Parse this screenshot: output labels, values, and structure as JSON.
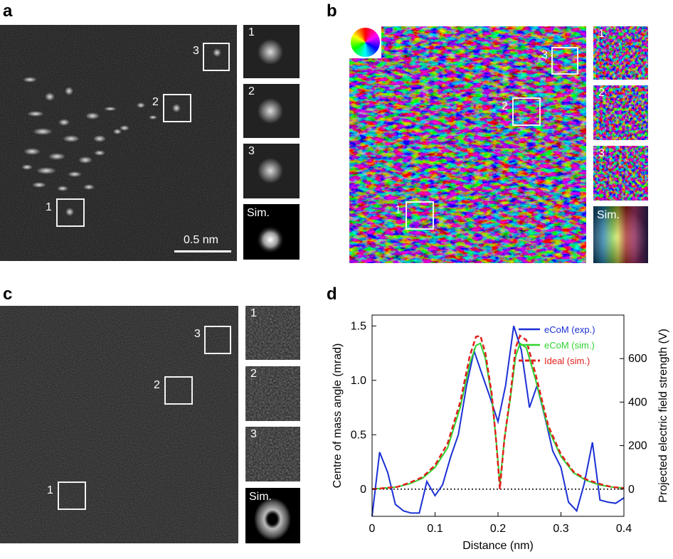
{
  "panels": {
    "a": {
      "letter": "a",
      "box_labels": [
        "1",
        "2",
        "3"
      ],
      "thumb_labels": [
        "1",
        "2",
        "3"
      ],
      "sim_label": "Sim.",
      "scale_bar": "0.5 nm"
    },
    "b": {
      "letter": "b",
      "box_labels": [
        "1",
        "2",
        "3"
      ],
      "thumb_labels": [
        "1",
        "2",
        "3"
      ],
      "sim_label": "Sim."
    },
    "c": {
      "letter": "c",
      "box_labels": [
        "1",
        "2",
        "3"
      ],
      "thumb_labels": [
        "1",
        "2",
        "3"
      ],
      "sim_label": "Sim."
    },
    "d": {
      "letter": "d"
    }
  },
  "chart_data": {
    "type": "line",
    "xlabel": "Distance (nm)",
    "ylabel": "Centre of mass angle (mrad)",
    "y2label": "Projected electric field strength (V)",
    "xlim": [
      0,
      0.4
    ],
    "ylim": [
      -0.25,
      1.6
    ],
    "y2lim": [
      -125,
      800
    ],
    "xticks": [
      "0",
      "0.1",
      "0.2",
      "0.3",
      "0.4"
    ],
    "yticks": [
      "0",
      "0.5",
      "1.0",
      "1.5"
    ],
    "y2ticks": [
      "0",
      "200",
      "400",
      "600"
    ],
    "legend_position": "top-right",
    "zero_line": true,
    "series": [
      {
        "name": "eCoM (exp.)",
        "color": "#1a2fd4",
        "style": "solid",
        "x": [
          0,
          0.012,
          0.025,
          0.037,
          0.05,
          0.062,
          0.075,
          0.087,
          0.1,
          0.112,
          0.125,
          0.137,
          0.15,
          0.162,
          0.175,
          0.187,
          0.2,
          0.212,
          0.225,
          0.237,
          0.25,
          0.262,
          0.275,
          0.287,
          0.3,
          0.312,
          0.325,
          0.337,
          0.35,
          0.362,
          0.375,
          0.387,
          0.4
        ],
        "y": [
          -0.25,
          0.34,
          0.15,
          -0.14,
          -0.2,
          -0.22,
          -0.22,
          0.07,
          -0.06,
          0.04,
          0.3,
          0.5,
          0.95,
          1.27,
          1.05,
          0.85,
          0.62,
          0.95,
          1.5,
          1.28,
          0.75,
          0.95,
          0.65,
          0.35,
          0.2,
          -0.12,
          -0.2,
          0.05,
          0.43,
          -0.1,
          -0.12,
          -0.13,
          -0.08
        ]
      },
      {
        "name": "eCoM (sim.)",
        "color": "#2fd22f",
        "style": "solid",
        "x": [
          0,
          0.02,
          0.04,
          0.06,
          0.08,
          0.1,
          0.12,
          0.14,
          0.155,
          0.165,
          0.172,
          0.18,
          0.19,
          0.197,
          0.203,
          0.21,
          0.22,
          0.228,
          0.235,
          0.245,
          0.26,
          0.28,
          0.3,
          0.32,
          0.34,
          0.36,
          0.38,
          0.4
        ],
        "y": [
          0,
          0.01,
          0.02,
          0.05,
          0.1,
          0.2,
          0.38,
          0.75,
          1.15,
          1.32,
          1.34,
          1.2,
          0.85,
          0.45,
          0.05,
          0.45,
          0.85,
          1.22,
          1.34,
          1.3,
          1.0,
          0.55,
          0.3,
          0.15,
          0.08,
          0.04,
          0.02,
          0.01
        ]
      },
      {
        "name": "Ideal (sim.)",
        "color": "#e0201b",
        "style": "dashed",
        "x": [
          0,
          0.02,
          0.04,
          0.06,
          0.08,
          0.1,
          0.12,
          0.14,
          0.155,
          0.165,
          0.172,
          0.18,
          0.19,
          0.197,
          0.203,
          0.21,
          0.22,
          0.228,
          0.235,
          0.245,
          0.26,
          0.28,
          0.3,
          0.32,
          0.34,
          0.36,
          0.38,
          0.4
        ],
        "y": [
          0,
          0.01,
          0.02,
          0.06,
          0.11,
          0.22,
          0.42,
          0.8,
          1.22,
          1.4,
          1.41,
          1.25,
          0.88,
          0.45,
          0,
          0.45,
          0.88,
          1.3,
          1.41,
          1.37,
          1.05,
          0.58,
          0.32,
          0.16,
          0.09,
          0.05,
          0.02,
          0.01
        ]
      }
    ]
  }
}
